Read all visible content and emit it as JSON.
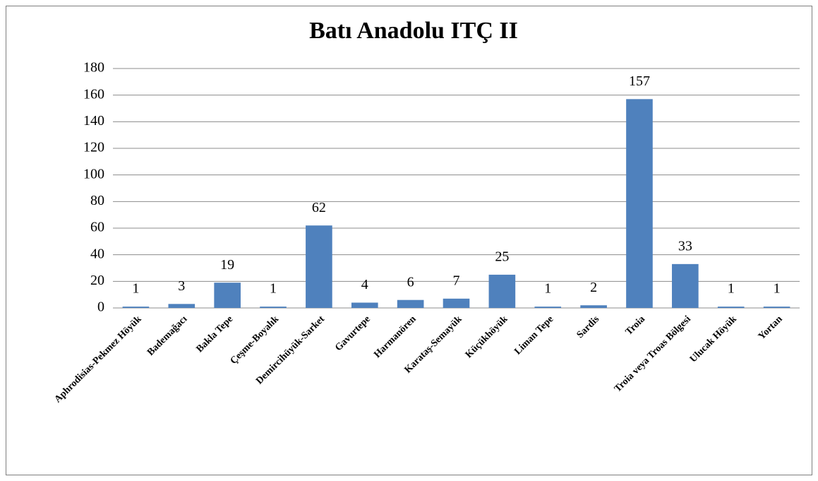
{
  "chart_data": {
    "type": "bar",
    "title": "Batı Anadolu ITÇ II",
    "categories": [
      "Aphrodisias-Pekmez Höyük",
      "Bademağacı",
      "Bakla Tepe",
      "Çeşme-Boyalık",
      "Demircihüyük-Sarket",
      "Gavurtepe",
      "Harmanören",
      "Karataş-Semayük",
      "Küçükhöyük",
      "Liman Tepe",
      "Sardis",
      "Troia",
      "Troia veya Troas Bölgesi",
      "Ulucak Höyük",
      "Yortan"
    ],
    "values": [
      1,
      3,
      19,
      1,
      62,
      4,
      6,
      7,
      25,
      1,
      2,
      157,
      33,
      1,
      1
    ],
    "color": "#4f81bd",
    "ylim": [
      0,
      180
    ],
    "yticks": [
      0,
      20,
      40,
      60,
      80,
      100,
      120,
      140,
      160,
      180
    ],
    "grid": true,
    "data_labels": true
  }
}
